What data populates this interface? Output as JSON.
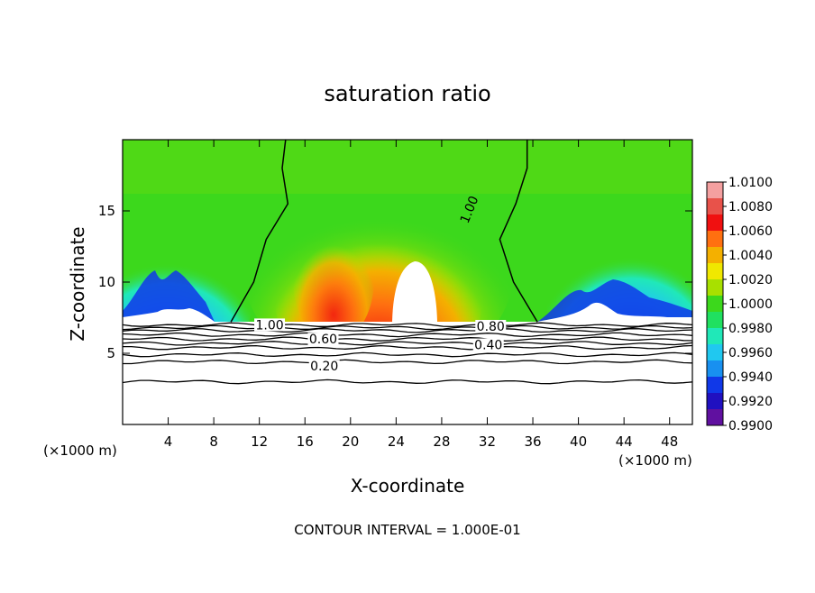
{
  "chart_data": {
    "type": "heatmap",
    "title": "saturation ratio",
    "xlabel": "X-coordinate",
    "ylabel": "Z-coordinate",
    "x_unit_left": "(×1000 m)",
    "x_unit_right": "(×1000 m)",
    "footer": "CONTOUR INTERVAL = 1.000E-01",
    "xlim": [
      0,
      50
    ],
    "ylim": [
      0,
      20
    ],
    "x_ticks": [
      4,
      8,
      12,
      16,
      20,
      24,
      28,
      32,
      36,
      40,
      44,
      48
    ],
    "x_tick_labels": [
      "4",
      "8",
      "12",
      "16",
      "20",
      "24",
      "28",
      "32",
      "36",
      "40",
      "44",
      "48"
    ],
    "y_ticks": [
      5,
      10,
      15
    ],
    "y_tick_labels": [
      "5",
      "10",
      "15"
    ],
    "colorbar": {
      "range": [
        0.99,
        1.01
      ],
      "labels": [
        "1.0100",
        "1.0080",
        "1.0060",
        "1.0040",
        "1.0020",
        "1.0000",
        "0.9980",
        "0.9960",
        "0.9940",
        "0.9920",
        "0.9900"
      ],
      "levels": [
        1.01,
        1.008,
        1.006,
        1.004,
        1.002,
        1.0,
        0.998,
        0.996,
        0.994,
        0.992,
        0.99
      ],
      "colors": [
        "#f4a0a0",
        "#e8524a",
        "#f01010",
        "#ff7010",
        "#f4b000",
        "#f0e800",
        "#a8e000",
        "#3cd81c",
        "#20e060",
        "#20e8b8",
        "#20c8f0",
        "#1890f0",
        "#1038e8",
        "#2010c0",
        "#6010a0"
      ]
    },
    "contour_labels": [
      {
        "text": "1.00",
        "x": 30.4,
        "z": 15.1,
        "rotate": -68
      },
      {
        "text": "1.00",
        "x": 12.9,
        "z": 7.0
      },
      {
        "text": "0.80",
        "x": 32.3,
        "z": 6.9
      },
      {
        "text": "0.60",
        "x": 17.6,
        "z": 6.0
      },
      {
        "text": "0.40",
        "x": 32.1,
        "z": 5.6
      },
      {
        "text": "0.20",
        "x": 17.7,
        "z": 4.1
      }
    ],
    "contour_lines_z": [
      7.0,
      6.8,
      6.6,
      6.3,
      6.0,
      5.7,
      5.4,
      4.9,
      4.4,
      3.0
    ],
    "unity_contour_left": [
      [
        9.5,
        7.2
      ],
      [
        11.5,
        10
      ],
      [
        12.6,
        13
      ],
      [
        14.5,
        15.5
      ],
      [
        14.0,
        18
      ],
      [
        14.3,
        20
      ]
    ],
    "unity_contour_right": [
      [
        36.4,
        7.2
      ],
      [
        34.3,
        10
      ],
      [
        33.1,
        13
      ],
      [
        34.5,
        15.5
      ],
      [
        35.5,
        18
      ],
      [
        35.5,
        20
      ]
    ]
  }
}
